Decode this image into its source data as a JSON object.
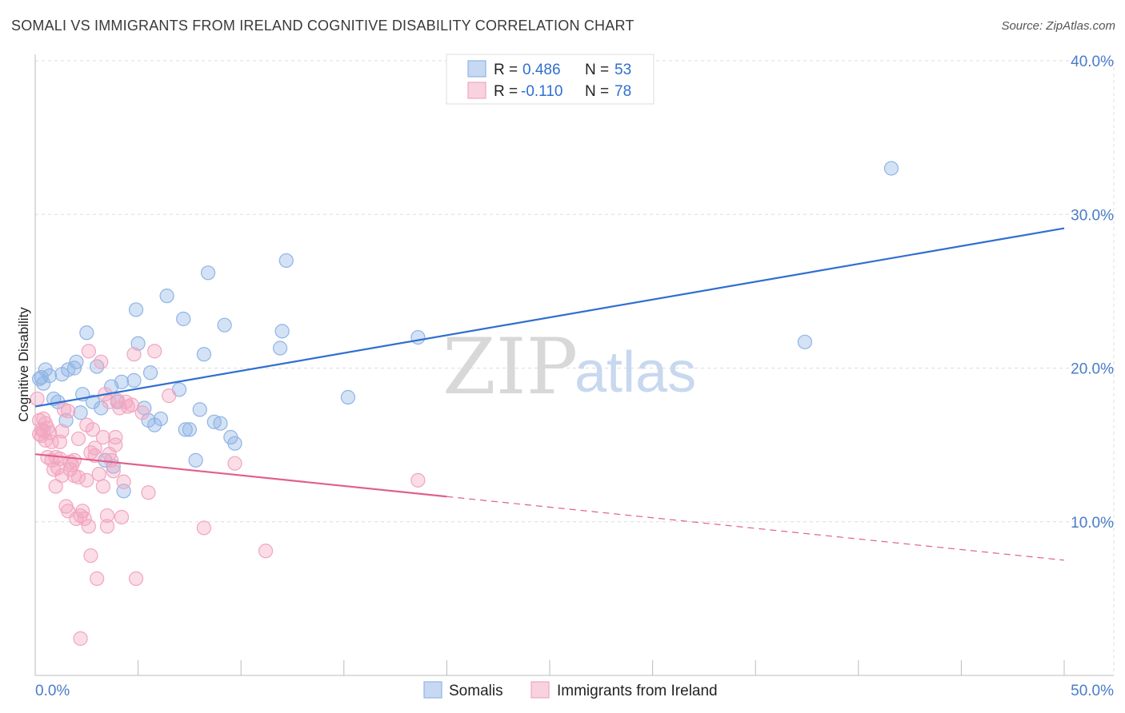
{
  "title": "SOMALI VS IMMIGRANTS FROM IRELAND COGNITIVE DISABILITY CORRELATION CHART",
  "source": "Source: ZipAtlas.com",
  "watermark": {
    "zip": "ZIP",
    "atlas": "atlas"
  },
  "legend_top": [
    {
      "r_label": "R = ",
      "r_value": "0.486",
      "n_label": "N = ",
      "n_value": "53",
      "color": "#8fb4e6"
    },
    {
      "r_label": "R = ",
      "r_value": "-0.110",
      "n_label": "N = ",
      "n_value": "78",
      "color": "#f2a5bf"
    }
  ],
  "legend_bottom": [
    {
      "label": "Somalis",
      "color": "#8fb4e6"
    },
    {
      "label": "Immigrants from Ireland",
      "color": "#f2a5bf"
    }
  ],
  "chart_data": {
    "type": "scatter",
    "title": "SOMALI VS IMMIGRANTS FROM IRELAND COGNITIVE DISABILITY CORRELATION CHART",
    "xlabel": "",
    "ylabel": "Cognitive Disability",
    "xlim": [
      0,
      50
    ],
    "ylim": [
      0,
      40
    ],
    "x_tick_labels": [
      "0.0%",
      "50.0%"
    ],
    "y_ticks": [
      10,
      20,
      30,
      40
    ],
    "y_tick_labels": [
      "10.0%",
      "20.0%",
      "30.0%",
      "40.0%"
    ],
    "grid": true,
    "series": [
      {
        "name": "Somalis",
        "color": "#8fb4e6",
        "line_color": "#2f6fd0",
        "trend": {
          "x": [
            0,
            50
          ],
          "y": [
            17.5,
            29.1
          ],
          "dashed_from": null
        },
        "points": [
          [
            0.3,
            19.4
          ],
          [
            0.5,
            19.9
          ],
          [
            0.7,
            19.5
          ],
          [
            0.9,
            18.0
          ],
          [
            1.1,
            17.8
          ],
          [
            1.3,
            19.6
          ],
          [
            1.5,
            16.6
          ],
          [
            1.6,
            19.9
          ],
          [
            1.9,
            20.0
          ],
          [
            2.0,
            20.4
          ],
          [
            2.2,
            17.1
          ],
          [
            2.3,
            18.3
          ],
          [
            2.5,
            22.3
          ],
          [
            2.8,
            17.8
          ],
          [
            3.0,
            20.1
          ],
          [
            3.2,
            17.4
          ],
          [
            3.4,
            14.0
          ],
          [
            3.7,
            18.8
          ],
          [
            3.8,
            13.6
          ],
          [
            4.0,
            17.8
          ],
          [
            4.2,
            19.1
          ],
          [
            4.3,
            12.0
          ],
          [
            4.8,
            19.2
          ],
          [
            4.9,
            23.8
          ],
          [
            5.0,
            21.6
          ],
          [
            5.3,
            17.4
          ],
          [
            5.5,
            16.6
          ],
          [
            5.6,
            19.7
          ],
          [
            5.8,
            16.3
          ],
          [
            6.1,
            16.7
          ],
          [
            6.4,
            24.7
          ],
          [
            7.0,
            18.6
          ],
          [
            7.2,
            23.2
          ],
          [
            7.3,
            16.0
          ],
          [
            7.5,
            16.0
          ],
          [
            7.8,
            14.0
          ],
          [
            8.0,
            17.3
          ],
          [
            8.2,
            20.9
          ],
          [
            8.4,
            26.2
          ],
          [
            8.7,
            16.5
          ],
          [
            9.0,
            16.4
          ],
          [
            9.2,
            22.8
          ],
          [
            9.5,
            15.5
          ],
          [
            9.7,
            15.1
          ],
          [
            11.9,
            21.3
          ],
          [
            12.0,
            22.4
          ],
          [
            12.2,
            27.0
          ],
          [
            15.2,
            18.1
          ],
          [
            18.6,
            22.0
          ],
          [
            37.4,
            21.7
          ],
          [
            41.6,
            33.0
          ],
          [
            0.2,
            19.3
          ],
          [
            0.4,
            19.0
          ]
        ]
      },
      {
        "name": "Immigrants from Ireland",
        "color": "#f2a5bf",
        "line_color": "#e0608a",
        "trend": {
          "x": [
            0,
            50
          ],
          "y": [
            14.4,
            7.5
          ],
          "dashed_from": 20
        },
        "points": [
          [
            0.1,
            18.0
          ],
          [
            0.2,
            16.6
          ],
          [
            0.3,
            16.0
          ],
          [
            0.3,
            15.6
          ],
          [
            0.4,
            15.9
          ],
          [
            0.5,
            15.3
          ],
          [
            0.6,
            16.1
          ],
          [
            0.6,
            14.2
          ],
          [
            0.7,
            15.8
          ],
          [
            0.8,
            14.0
          ],
          [
            0.9,
            13.4
          ],
          [
            1.0,
            12.3
          ],
          [
            1.0,
            14.2
          ],
          [
            1.1,
            13.5
          ],
          [
            1.2,
            15.2
          ],
          [
            1.3,
            15.9
          ],
          [
            1.3,
            13.0
          ],
          [
            1.4,
            17.3
          ],
          [
            1.5,
            11.0
          ],
          [
            1.6,
            17.2
          ],
          [
            1.6,
            10.7
          ],
          [
            1.7,
            13.9
          ],
          [
            1.8,
            13.7
          ],
          [
            1.9,
            13.0
          ],
          [
            1.9,
            14.0
          ],
          [
            2.0,
            10.2
          ],
          [
            2.1,
            15.4
          ],
          [
            2.2,
            10.4
          ],
          [
            2.2,
            2.4
          ],
          [
            2.3,
            10.7
          ],
          [
            2.4,
            10.2
          ],
          [
            2.5,
            12.7
          ],
          [
            2.5,
            16.3
          ],
          [
            2.6,
            21.1
          ],
          [
            2.6,
            9.7
          ],
          [
            2.7,
            7.8
          ],
          [
            2.8,
            16.0
          ],
          [
            2.9,
            14.8
          ],
          [
            2.9,
            14.3
          ],
          [
            3.0,
            6.3
          ],
          [
            3.1,
            13.1
          ],
          [
            3.2,
            20.4
          ],
          [
            3.3,
            15.5
          ],
          [
            3.3,
            12.3
          ],
          [
            3.4,
            18.3
          ],
          [
            3.5,
            10.4
          ],
          [
            3.5,
            9.7
          ],
          [
            3.6,
            17.8
          ],
          [
            3.7,
            14.0
          ],
          [
            3.8,
            13.3
          ],
          [
            3.9,
            15.0
          ],
          [
            3.9,
            15.5
          ],
          [
            4.0,
            17.9
          ],
          [
            4.1,
            17.4
          ],
          [
            4.2,
            10.3
          ],
          [
            4.3,
            12.6
          ],
          [
            4.4,
            17.8
          ],
          [
            4.5,
            17.5
          ],
          [
            4.7,
            17.6
          ],
          [
            4.8,
            20.9
          ],
          [
            4.9,
            6.3
          ],
          [
            5.2,
            17.1
          ],
          [
            5.5,
            11.9
          ],
          [
            5.8,
            21.1
          ],
          [
            6.5,
            18.2
          ],
          [
            8.2,
            9.6
          ],
          [
            9.7,
            13.8
          ],
          [
            11.2,
            8.1
          ],
          [
            18.6,
            12.7
          ],
          [
            0.4,
            16.7
          ],
          [
            0.8,
            15.2
          ],
          [
            1.2,
            14.1
          ],
          [
            1.7,
            13.4
          ],
          [
            2.1,
            12.9
          ],
          [
            2.7,
            14.5
          ],
          [
            3.6,
            14.4
          ],
          [
            0.2,
            15.7
          ],
          [
            0.5,
            16.4
          ]
        ]
      }
    ]
  }
}
